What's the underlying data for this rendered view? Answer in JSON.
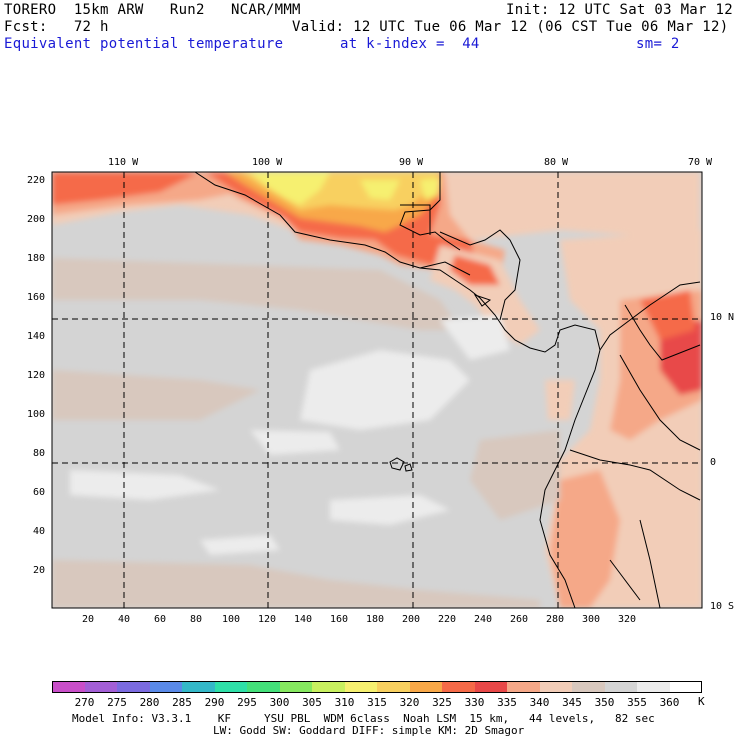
{
  "header": {
    "line1_left": "TORERO  15km ARW   Run2   NCAR/MMM",
    "line1_right": "Init: 12 UTC Sat 03 Mar 12",
    "line2_left": "Fcst:   72 h",
    "line2_right": "Valid: 12 UTC Tue 06 Mar 12 (06 CST Tue 06 Mar 12)",
    "field": "Equivalent potential temperature",
    "level": "at k-index =  44",
    "smooth": "sm= 2"
  },
  "map": {
    "lon_labels": [
      "110 W",
      "100 W",
      "90 W",
      "80 W",
      "70 W"
    ],
    "lat_labels": [
      "10 N",
      "0",
      "10 S"
    ],
    "x_ticks": [
      "20",
      "40",
      "60",
      "80",
      "100",
      "120",
      "140",
      "160",
      "180",
      "200",
      "220",
      "240",
      "260",
      "280",
      "300",
      "320"
    ],
    "y_ticks": [
      "220",
      "200",
      "180",
      "160",
      "140",
      "120",
      "100",
      "80",
      "60",
      "40",
      "20"
    ]
  },
  "colorbar": {
    "unit": "K",
    "labels": [
      "270",
      "275",
      "280",
      "285",
      "290",
      "295",
      "300",
      "305",
      "310",
      "315",
      "320",
      "325",
      "330",
      "335",
      "340",
      "345",
      "350",
      "355",
      "360"
    ],
    "colors": [
      "#c94fc9",
      "#a35fd6",
      "#7b6be0",
      "#5a8ae8",
      "#34b8c8",
      "#2ee0a8",
      "#44e07a",
      "#86e860",
      "#c8f060",
      "#f6f070",
      "#f8d060",
      "#f8a848",
      "#f56a48",
      "#e84848",
      "#f5a888",
      "#f2cdb8",
      "#d8c8be",
      "#d4d4d4",
      "#ececec",
      "#ffffff"
    ]
  },
  "footer": {
    "line1": "Model Info: V3.3.1    KF     YSU PBL  WDM 6class  Noah LSM  15 km,   44 levels,   82 sec",
    "line2": "LW: Godd SW: Goddard DIFF: simple KM: 2D Smagor"
  }
}
